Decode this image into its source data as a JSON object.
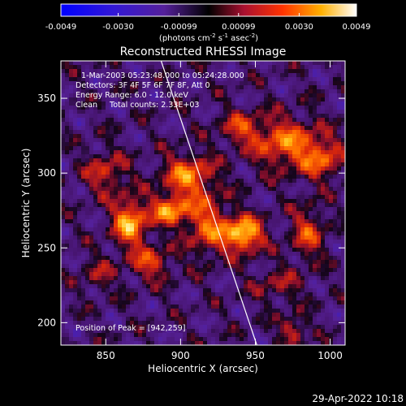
{
  "chart_data": {
    "type": "heatmap",
    "title": "Reconstructed RHESSI Image",
    "xlabel": "Heliocentric X (arcsec)",
    "ylabel": "Heliocentric Y (arcsec)",
    "xlim": [
      820,
      1010
    ],
    "ylim": [
      185,
      375
    ],
    "x_ticks": [
      "850",
      "900",
      "950",
      "1000"
    ],
    "x_tick_values": [
      850,
      900,
      950,
      1000
    ],
    "y_ticks": [
      "200",
      "250",
      "300",
      "350"
    ],
    "y_tick_values": [
      200,
      250,
      300,
      350
    ],
    "colorbar": {
      "range": [
        -0.0049,
        0.0049
      ],
      "tick_labels": [
        "-0.0049",
        "-0.0030",
        "-0.00099",
        "0.00099",
        "0.0030",
        "0.0049"
      ],
      "tick_values": [
        -0.0049,
        -0.003,
        -0.00099,
        0.00099,
        0.003,
        0.0049
      ],
      "unit_label": "(photons cm",
      "unit_exp1": "-2",
      "unit_mid1": " s",
      "unit_exp2": "-1",
      "unit_mid2": " asec",
      "unit_exp3": "-2",
      "unit_end": ")"
    },
    "annotations": [
      "1-Mar-2003 05:23:48.000 to 05:24:28.000",
      "Detectors: 3F 4F 5F 6F 7F 8F, Att 0",
      "Energy Range: 6.0 - 12.0 keV",
      "Clean     Total counts: 2.33E+03"
    ],
    "peak_label": "Position of Peak = [942,259]",
    "peak": [
      942,
      259
    ],
    "limb_line": [
      [
        887,
        375
      ],
      [
        951,
        185
      ]
    ],
    "sources": [
      {
        "x": 942,
        "y": 259,
        "sx": 9,
        "sy": 8,
        "amp": 1.0
      },
      {
        "x": 866,
        "y": 267,
        "sx": 8,
        "sy": 11,
        "amp": 0.85
      },
      {
        "x": 893,
        "y": 275,
        "sx": 9,
        "sy": 7,
        "amp": 0.75
      },
      {
        "x": 905,
        "y": 298,
        "sx": 12,
        "sy": 10,
        "amp": 0.7
      },
      {
        "x": 970,
        "y": 320,
        "sx": 15,
        "sy": 12,
        "amp": 0.65
      },
      {
        "x": 995,
        "y": 310,
        "sx": 10,
        "sy": 10,
        "amp": 0.55
      },
      {
        "x": 918,
        "y": 265,
        "sx": 10,
        "sy": 14,
        "amp": 0.6
      },
      {
        "x": 985,
        "y": 260,
        "sx": 8,
        "sy": 12,
        "amp": 0.5
      },
      {
        "x": 850,
        "y": 300,
        "sx": 10,
        "sy": 10,
        "amp": 0.45
      },
      {
        "x": 940,
        "y": 330,
        "sx": 10,
        "sy": 8,
        "amp": 0.45
      },
      {
        "x": 880,
        "y": 240,
        "sx": 10,
        "sy": 8,
        "amp": 0.5
      },
      {
        "x": 965,
        "y": 225,
        "sx": 12,
        "sy": 8,
        "amp": 0.3
      },
      {
        "x": 975,
        "y": 195,
        "sx": 6,
        "sy": 6,
        "amp": 0.5
      },
      {
        "x": 845,
        "y": 232,
        "sx": 8,
        "sy": 8,
        "amp": 0.3
      }
    ]
  },
  "footer_timestamp": "29-Apr-2022 10:18"
}
